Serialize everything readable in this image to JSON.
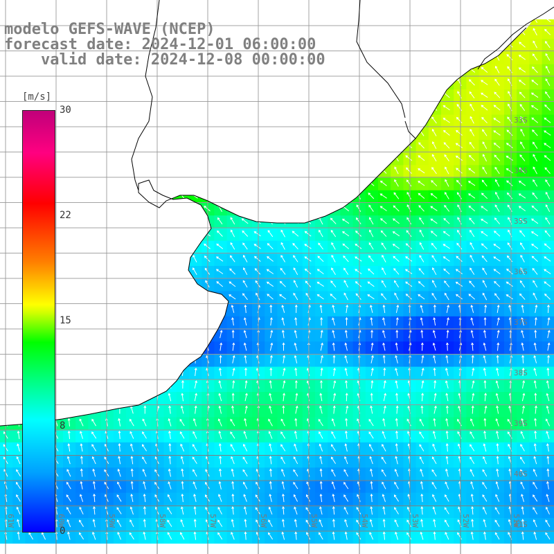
{
  "title": {
    "line1": "modelo GEFS-WAVE (NCEP)",
    "line2": "forecast date: 2024-12-01 06:00:00",
    "line3": "    valid date: 2024-12-08 00:00:00"
  },
  "colorbar": {
    "unit": "[m/s]",
    "ticks": [
      {
        "label": "30",
        "value": 30
      },
      {
        "label": "22",
        "value": 22
      },
      {
        "label": "15",
        "value": 15
      },
      {
        "label": "8",
        "value": 8
      },
      {
        "label": "0",
        "value": 0
      }
    ],
    "range": [
      0,
      30
    ]
  },
  "lat_labels": [
    "33S",
    "34S",
    "35S",
    "36S",
    "37S",
    "38S",
    "39S",
    "40S",
    "41S"
  ],
  "lon_labels": [
    "61W",
    "60W",
    "59W",
    "58W",
    "57W",
    "56W",
    "55W",
    "54W",
    "53W",
    "52W",
    "51W"
  ],
  "colors": {
    "land": "#ffffff",
    "coast": "#000000",
    "grid": "#808080",
    "arrows": "#ffffff"
  },
  "wind_field": {
    "units": "m/s",
    "latitude_range_deg": [
      -41.2,
      -31.0
    ],
    "longitude_range_deg": [
      -61.9,
      -51.1
    ],
    "features": [
      {
        "name": "strong wind band",
        "lat_center": -33.6,
        "speed_ms": 15,
        "direction": "from SE"
      },
      {
        "name": "weak wind band",
        "lat_center": -37.3,
        "speed_ms": 3
      },
      {
        "name": "weak wind band",
        "lat_center": -40.0,
        "speed_ms": 4
      }
    ]
  }
}
